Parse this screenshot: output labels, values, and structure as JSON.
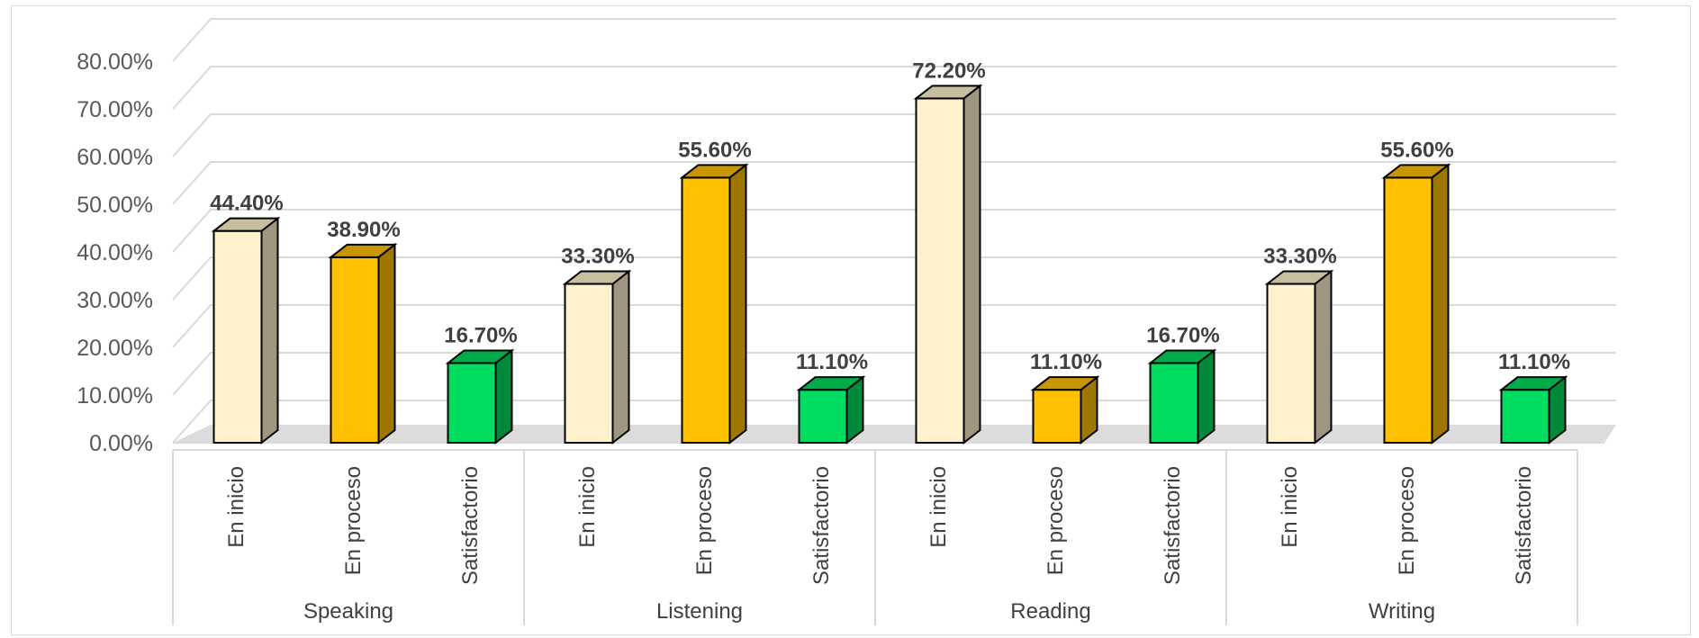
{
  "chart_data": {
    "type": "bar",
    "title": "",
    "xlabel": "",
    "ylabel": "",
    "ylim": [
      0,
      0.8
    ],
    "ytick_step": 0.1,
    "ytick_labels": [
      "0.00%",
      "10.00%",
      "20.00%",
      "30.00%",
      "40.00%",
      "50.00%",
      "60.00%",
      "70.00%",
      "80.00%"
    ],
    "grid": true,
    "legend": "none",
    "style": "3d-column",
    "groups": [
      {
        "name": "Speaking",
        "bars": [
          {
            "category": "En inicio",
            "value": 0.444,
            "label": "44.40%",
            "color": "#FFF2CC"
          },
          {
            "category": "En proceso",
            "value": 0.389,
            "label": "38.90%",
            "color": "#FFC000"
          },
          {
            "category": "Satisfactorio",
            "value": 0.167,
            "label": "16.70%",
            "color": "#00DC5F"
          }
        ]
      },
      {
        "name": "Listening",
        "bars": [
          {
            "category": "En inicio",
            "value": 0.333,
            "label": "33.30%",
            "color": "#FFF2CC"
          },
          {
            "category": "En proceso",
            "value": 0.556,
            "label": "55.60%",
            "color": "#FFC000"
          },
          {
            "category": "Satisfactorio",
            "value": 0.111,
            "label": "11.10%",
            "color": "#00DC5F"
          }
        ]
      },
      {
        "name": "Reading",
        "bars": [
          {
            "category": "En inicio",
            "value": 0.722,
            "label": "72.20%",
            "color": "#FFF2CC"
          },
          {
            "category": "En proceso",
            "value": 0.111,
            "label": "11.10%",
            "color": "#FFC000"
          },
          {
            "category": "Satisfactorio",
            "value": 0.167,
            "label": "16.70%",
            "color": "#00DC5F"
          }
        ]
      },
      {
        "name": "Writing",
        "bars": [
          {
            "category": "En inicio",
            "value": 0.333,
            "label": "33.30%",
            "color": "#FFF2CC"
          },
          {
            "category": "En proceso",
            "value": 0.556,
            "label": "55.60%",
            "color": "#FFC000"
          },
          {
            "category": "Satisfactorio",
            "value": 0.111,
            "label": "11.10%",
            "color": "#00DC5F"
          }
        ]
      }
    ]
  }
}
